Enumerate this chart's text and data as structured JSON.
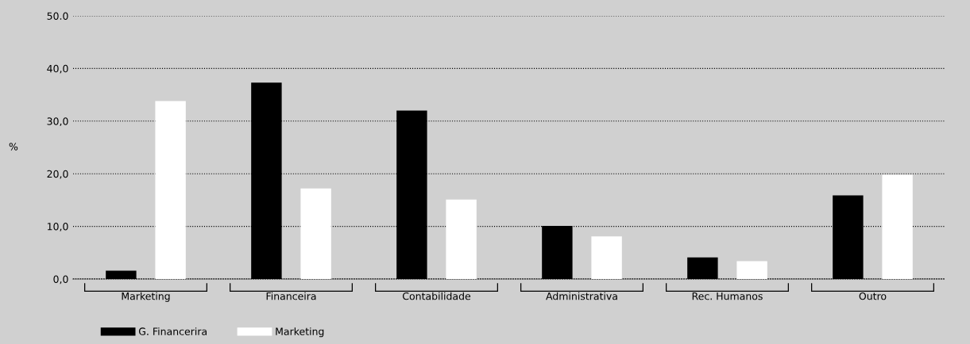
{
  "chart_data": {
    "type": "bar",
    "ylabel": "%",
    "categories": [
      "Marketing",
      "Financeira",
      "Contabilidade",
      "Administrativa",
      "Rec. Humanos",
      "Outro"
    ],
    "series": [
      {
        "name": "G. Financerira",
        "color": "#000000",
        "values": [
          1.6,
          37.3,
          32.0,
          10.1,
          4.1,
          15.9
        ]
      },
      {
        "name": "Marketing",
        "color": "#ffffff",
        "values": [
          33.8,
          17.2,
          15.1,
          8.1,
          3.4,
          19.8
        ]
      }
    ],
    "ylim": [
      0,
      50
    ],
    "yticks": [
      {
        "value": 0,
        "label": "0,0"
      },
      {
        "value": 10,
        "label": "10,0"
      },
      {
        "value": 20,
        "label": "20,0"
      },
      {
        "value": 30,
        "label": "30,0"
      },
      {
        "value": 40,
        "label": "40,0"
      },
      {
        "value": 50,
        "label": "50.0"
      }
    ],
    "grid": "y",
    "legend": "bottom left"
  }
}
